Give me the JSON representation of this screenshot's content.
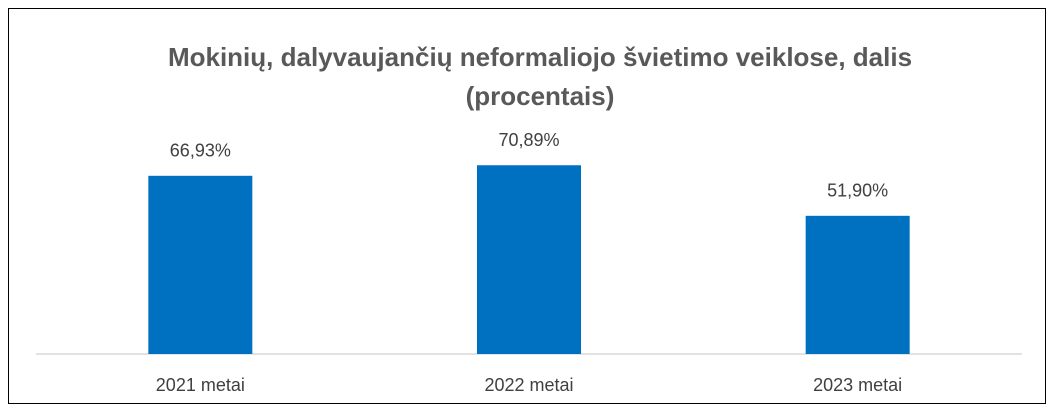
{
  "chart_data": {
    "type": "bar",
    "title": "Mokinių, dalyvaujančių neformaliojo švietimo veiklose, dalis (procentais)",
    "categories": [
      "2021 metai",
      "2022 metai",
      "2023 metai"
    ],
    "values": [
      66.93,
      70.89,
      51.9
    ],
    "value_labels": [
      "66,93%",
      "70,89%",
      "51,90%"
    ],
    "color": "#0070c0",
    "ylim": [
      0,
      80
    ]
  }
}
